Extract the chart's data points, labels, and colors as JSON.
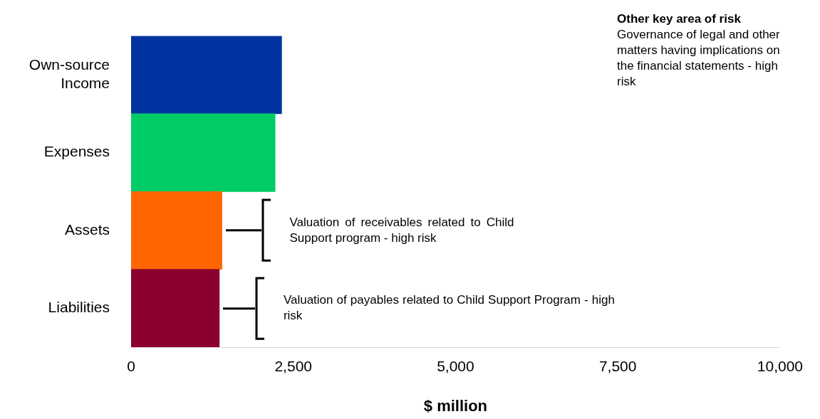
{
  "chart_data": {
    "type": "bar",
    "orientation": "horizontal",
    "categories": [
      "Own-source Income",
      "Expenses",
      "Assets",
      "Liabilities"
    ],
    "colors": [
      "#0033a0",
      "#00cc66",
      "#ff6600",
      "#8b0030"
    ],
    "values": [
      2320,
      2220,
      1400,
      1360
    ],
    "xlim": [
      0,
      10000
    ],
    "xticks": [
      0,
      {
        "value": 2500,
        "label": "2,500"
      },
      {
        "value": 5000,
        "label": "5,000"
      },
      {
        "value": 7500,
        "label": "7,500"
      },
      {
        "value": 10000,
        "label": "10,000"
      }
    ],
    "xlabel": "$ million",
    "grid": false,
    "legend": false,
    "annotations": [
      "Other key area of risk",
      "Governance of legal and other matters having implications on the financial statements - high risk",
      "Valuation of receivables related to Child Support program - high risk",
      "Valuation of payables related to Child Support Program - high risk"
    ]
  }
}
